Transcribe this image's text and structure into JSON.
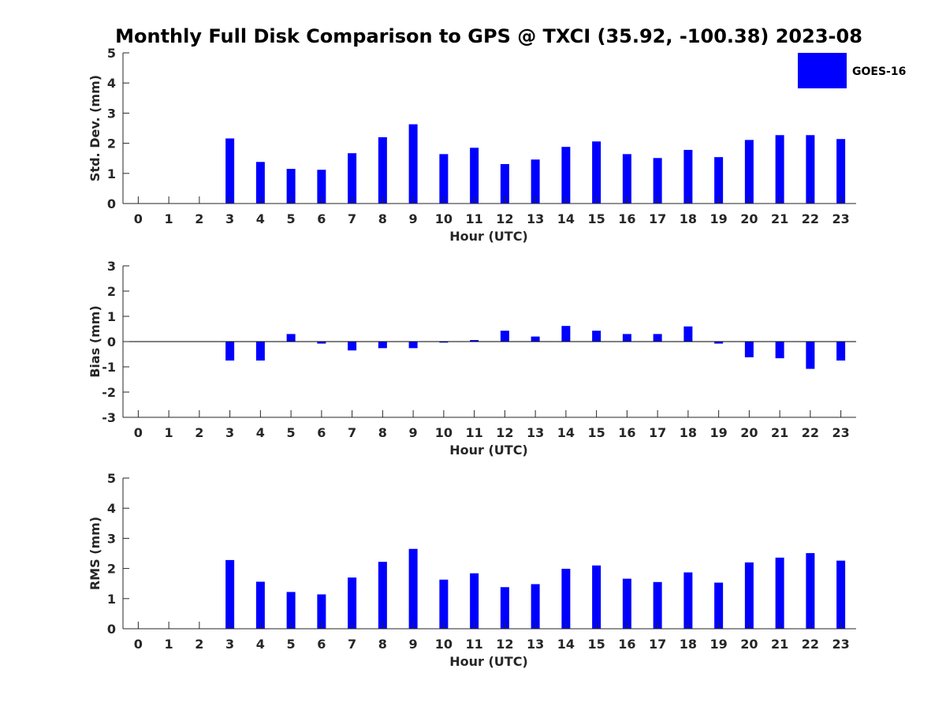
{
  "title": "Monthly Full Disk Comparison to GPS @ TXCI (35.92, -100.38) 2023-08",
  "legend": {
    "label": "GOES-16",
    "color": "#0000ff",
    "placement": "top-right"
  },
  "chart_data": [
    {
      "type": "bar",
      "ylabel": "Std. Dev. (mm)",
      "xlabel": "Hour (UTC)",
      "ylim": [
        0,
        5
      ],
      "yticks": [
        0,
        1,
        2,
        3,
        4,
        5
      ],
      "xlim": [
        -0.5,
        23.5
      ],
      "categories": [
        "0",
        "1",
        "2",
        "3",
        "4",
        "5",
        "6",
        "7",
        "8",
        "9",
        "10",
        "11",
        "12",
        "13",
        "14",
        "15",
        "16",
        "17",
        "18",
        "19",
        "20",
        "21",
        "22",
        "23"
      ],
      "series": [
        {
          "name": "GOES-16",
          "color": "#0000ff",
          "values": [
            null,
            null,
            null,
            2.16,
            1.38,
            1.15,
            1.12,
            1.67,
            2.2,
            2.63,
            1.64,
            1.85,
            1.31,
            1.46,
            1.88,
            2.06,
            1.64,
            1.51,
            1.78,
            1.54,
            2.11,
            2.27,
            2.27,
            2.14
          ]
        }
      ],
      "grid": false
    },
    {
      "type": "bar",
      "ylabel": "Bias (mm)",
      "xlabel": "Hour (UTC)",
      "ylim": [
        -3,
        3
      ],
      "yticks": [
        -3,
        -2,
        -1,
        0,
        1,
        2,
        3
      ],
      "xlim": [
        -0.5,
        23.5
      ],
      "categories": [
        "0",
        "1",
        "2",
        "3",
        "4",
        "5",
        "6",
        "7",
        "8",
        "9",
        "10",
        "11",
        "12",
        "13",
        "14",
        "15",
        "16",
        "17",
        "18",
        "19",
        "20",
        "21",
        "22",
        "23"
      ],
      "series": [
        {
          "name": "GOES-16",
          "color": "#0000ff",
          "values": [
            null,
            null,
            null,
            -0.75,
            -0.75,
            0.3,
            -0.08,
            -0.35,
            -0.26,
            -0.26,
            -0.04,
            0.06,
            0.43,
            0.2,
            0.62,
            0.43,
            0.3,
            0.3,
            0.6,
            -0.08,
            -0.62,
            -0.66,
            -1.08,
            -0.75
          ]
        }
      ],
      "zero_line": true,
      "grid": false
    },
    {
      "type": "bar",
      "ylabel": "RMS (mm)",
      "xlabel": "Hour (UTC)",
      "ylim": [
        0,
        5
      ],
      "yticks": [
        0,
        1,
        2,
        3,
        4,
        5
      ],
      "xlim": [
        -0.5,
        23.5
      ],
      "categories": [
        "0",
        "1",
        "2",
        "3",
        "4",
        "5",
        "6",
        "7",
        "8",
        "9",
        "10",
        "11",
        "12",
        "13",
        "14",
        "15",
        "16",
        "17",
        "18",
        "19",
        "20",
        "21",
        "22",
        "23"
      ],
      "series": [
        {
          "name": "GOES-16",
          "color": "#0000ff",
          "values": [
            null,
            null,
            null,
            2.28,
            1.56,
            1.22,
            1.14,
            1.7,
            2.22,
            2.65,
            1.63,
            1.84,
            1.38,
            1.48,
            1.99,
            2.1,
            1.66,
            1.55,
            1.87,
            1.53,
            2.2,
            2.36,
            2.51,
            2.26
          ]
        }
      ],
      "grid": false
    }
  ]
}
